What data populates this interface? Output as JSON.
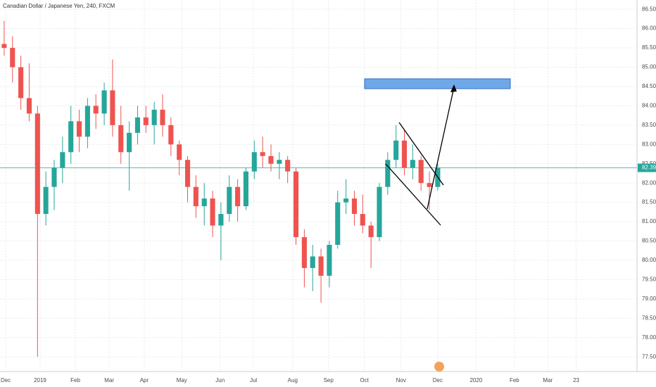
{
  "chart_data": {
    "type": "candlestick",
    "title": "Canadian Dollar / Japanese Yen, 240, FXCM",
    "up_color": "#26a69a",
    "down_color": "#ef5350",
    "open": [
      85.6,
      85.5,
      85.0,
      84.2,
      83.8,
      81.2,
      81.9,
      82.4,
      82.8,
      83.6,
      83.2,
      84.0,
      83.8,
      84.4,
      83.5,
      82.8,
      83.3,
      83.7,
      83.5,
      83.9,
      83.5,
      83.0,
      82.6,
      81.9,
      81.4,
      81.6,
      80.9,
      81.2,
      81.9,
      81.4,
      82.3,
      82.8,
      82.7,
      82.5,
      82.6,
      82.3,
      80.6,
      79.8,
      80.1,
      79.6,
      80.4,
      81.5,
      81.6,
      81.2,
      80.9,
      80.6,
      81.9,
      82.6,
      83.1,
      82.4,
      82.6,
      82.0,
      81.9
    ],
    "high": [
      86.2,
      85.8,
      85.3,
      85.1,
      84.0,
      82.3,
      82.6,
      83.2,
      84.0,
      83.9,
      84.2,
      84.3,
      84.6,
      85.2,
      84.0,
      83.6,
      84.0,
      84.0,
      84.1,
      84.3,
      83.7,
      83.1,
      82.7,
      82.2,
      82.0,
      81.8,
      81.5,
      82.2,
      82.1,
      82.4,
      83.1,
      83.2,
      83.0,
      82.8,
      82.7,
      82.4,
      80.8,
      80.4,
      80.3,
      80.5,
      81.8,
      82.1,
      81.8,
      81.7,
      81.0,
      82.0,
      82.8,
      83.5,
      83.4,
      83.0,
      82.7,
      82.3,
      82.5
    ],
    "low": [
      85.3,
      84.6,
      83.9,
      83.6,
      77.5,
      80.9,
      81.3,
      82.0,
      82.5,
      82.8,
      82.9,
      83.4,
      83.5,
      83.2,
      82.5,
      81.8,
      83.0,
      83.3,
      83.0,
      83.2,
      82.7,
      82.2,
      81.5,
      81.1,
      80.9,
      80.6,
      80.0,
      81.0,
      81.0,
      81.3,
      82.1,
      82.4,
      82.3,
      82.1,
      82.0,
      80.4,
      79.3,
      79.2,
      78.9,
      79.3,
      80.3,
      81.2,
      80.9,
      80.7,
      79.8,
      80.5,
      81.7,
      82.4,
      82.2,
      82.1,
      81.8,
      81.3,
      81.8
    ],
    "close": [
      85.5,
      85.0,
      84.2,
      83.8,
      81.2,
      81.9,
      82.4,
      82.8,
      83.6,
      83.2,
      84.0,
      83.8,
      84.4,
      83.5,
      82.8,
      83.3,
      83.7,
      83.5,
      83.9,
      83.5,
      83.0,
      82.6,
      81.9,
      81.4,
      81.6,
      80.9,
      81.2,
      81.9,
      81.4,
      82.3,
      82.8,
      82.7,
      82.5,
      82.6,
      82.3,
      80.6,
      79.8,
      80.1,
      79.6,
      80.4,
      81.5,
      81.6,
      81.2,
      80.9,
      80.6,
      81.9,
      82.6,
      83.1,
      82.4,
      82.6,
      82.0,
      81.9,
      82.394
    ],
    "last_price": 82.394,
    "ylim": [
      77.12,
      86.74
    ],
    "yticks": [
      {
        "value": 77.5,
        "label": "77.500"
      },
      {
        "value": 78,
        "label": "78.000"
      },
      {
        "value": 78.5,
        "label": "78.500"
      },
      {
        "value": 79,
        "label": "79.000"
      },
      {
        "value": 79.5,
        "label": "79.500"
      },
      {
        "value": 80,
        "label": "80.000"
      },
      {
        "value": 80.5,
        "label": "80.500"
      },
      {
        "value": 81,
        "label": "81.000"
      },
      {
        "value": 81.5,
        "label": "81.500"
      },
      {
        "value": 82,
        "label": "82.000"
      },
      {
        "value": 82.5,
        "label": "82.500"
      },
      {
        "value": 83,
        "label": "83.000"
      },
      {
        "value": 83.5,
        "label": "83.500"
      },
      {
        "value": 84,
        "label": "84.000"
      },
      {
        "value": 84.5,
        "label": "84.500"
      },
      {
        "value": 85,
        "label": "85.000"
      },
      {
        "value": 85.5,
        "label": "85.500"
      },
      {
        "value": 86,
        "label": "86.000"
      },
      {
        "value": 86.5,
        "label": "86.500"
      }
    ],
    "xlim": [
      0,
      76.4
    ],
    "xticks": [
      {
        "value": 0.68,
        "label": "Dec"
      },
      {
        "value": 4.81,
        "label": "2019"
      },
      {
        "value": 9.04,
        "label": "Feb"
      },
      {
        "value": 13.1,
        "label": "Mar"
      },
      {
        "value": 17.3,
        "label": "Apr"
      },
      {
        "value": 21.8,
        "label": "May"
      },
      {
        "value": 26.4,
        "label": "Jun"
      },
      {
        "value": 30.4,
        "label": "Jul"
      },
      {
        "value": 35.1,
        "label": "Aug"
      },
      {
        "value": 39.4,
        "label": "Sep"
      },
      {
        "value": 43.7,
        "label": "Oct"
      },
      {
        "value": 48.1,
        "label": "Nov"
      },
      {
        "value": 52.5,
        "label": "Dec"
      },
      {
        "value": 57.1,
        "label": "2020"
      },
      {
        "value": 61.7,
        "label": "Feb"
      },
      {
        "value": 65.7,
        "label": "Mar"
      },
      {
        "value": 69.1,
        "label": "23"
      }
    ],
    "grid": true
  }
}
